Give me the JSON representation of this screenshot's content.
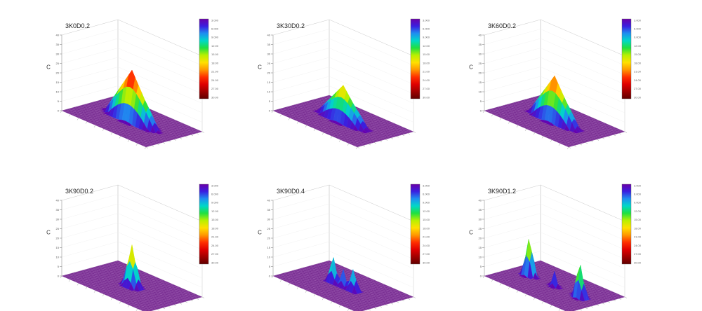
{
  "figure": {
    "colorbar": {
      "stops": [
        "#6a00a8",
        "#3a1fe0",
        "#1e8ff0",
        "#00d8c8",
        "#20e040",
        "#b8f000",
        "#ffe000",
        "#ff9800",
        "#ff3000",
        "#e00000",
        "#a00000",
        "#600000"
      ]
    },
    "surface_base_color": "#7a2f93",
    "gridline_color": "#c9c9c9"
  },
  "chart_data": [
    {
      "type": "surface3d",
      "title": "3K0D0.2",
      "zlabel": "C",
      "zlim": [
        0,
        40
      ],
      "z_ticks": [
        "0",
        "5",
        "10",
        "15",
        "20",
        "25",
        "30",
        "35",
        "40"
      ],
      "peaks": [
        {
          "x": 0.5,
          "y": 0.5,
          "height": 27,
          "spread_along_x": 0.32,
          "spread_along_y": 0.12
        }
      ],
      "colorbar_ticks": [
        "3.000",
        "6.000",
        "9.000",
        "12.00",
        "15.00",
        "18.00",
        "21.00",
        "24.00",
        "27.00",
        "30.00"
      ]
    },
    {
      "type": "surface3d",
      "title": "3K30D0.2",
      "zlabel": "C",
      "zlim": [
        0,
        40
      ],
      "z_ticks": [
        "0",
        "5",
        "10",
        "15",
        "20",
        "25",
        "30",
        "35",
        "40"
      ],
      "peaks": [
        {
          "x": 0.5,
          "y": 0.5,
          "height": 19,
          "spread_along_x": 0.3,
          "spread_along_y": 0.12
        }
      ],
      "colorbar_ticks": [
        "3.000",
        "6.000",
        "9.000",
        "12.00",
        "15.00",
        "18.00",
        "21.00",
        "24.00",
        "27.00",
        "30.00"
      ]
    },
    {
      "type": "surface3d",
      "title": "3K60D0.2",
      "zlabel": "C",
      "zlim": [
        0,
        40
      ],
      "z_ticks": [
        "0",
        "5",
        "10",
        "15",
        "20",
        "25",
        "30",
        "35",
        "40"
      ],
      "peaks": [
        {
          "x": 0.5,
          "y": 0.5,
          "height": 24,
          "spread_along_x": 0.3,
          "spread_along_y": 0.12
        }
      ],
      "colorbar_ticks": [
        "3.000",
        "6.000",
        "9.000",
        "12.00",
        "15.00",
        "18.00",
        "21.00",
        "24.00",
        "27.00",
        "30.00"
      ]
    },
    {
      "type": "surface3d",
      "title": "3K90D0.2",
      "zlabel": "C",
      "zlim": [
        0,
        40
      ],
      "z_ticks": [
        "0",
        "5",
        "10",
        "15",
        "20",
        "25",
        "30",
        "35",
        "40"
      ],
      "peaks": [
        {
          "x": 0.5,
          "y": 0.5,
          "height": 22,
          "spread_along_x": 0.1,
          "spread_along_y": 0.1
        }
      ],
      "colorbar_ticks": [
        "3.000",
        "6.000",
        "9.000",
        "12.00",
        "15.00",
        "18.00",
        "21.00",
        "24.00",
        "27.00",
        "30.00"
      ]
    },
    {
      "type": "surface3d",
      "title": "3K90D0.4",
      "zlabel": "C",
      "zlim": [
        0,
        40
      ],
      "z_ticks": [
        "0",
        "5",
        "10",
        "15",
        "20",
        "25",
        "30",
        "35",
        "40"
      ],
      "peaks": [
        {
          "x": 0.38,
          "y": 0.5,
          "height": 14,
          "spread_along_x": 0.07,
          "spread_along_y": 0.07
        },
        {
          "x": 0.5,
          "y": 0.5,
          "height": 9,
          "spread_along_x": 0.06,
          "spread_along_y": 0.06
        },
        {
          "x": 0.62,
          "y": 0.5,
          "height": 12,
          "spread_along_x": 0.07,
          "spread_along_y": 0.07
        }
      ],
      "colorbar_ticks": [
        "3.000",
        "6.000",
        "9.000",
        "12.00",
        "15.00",
        "18.00",
        "21.00",
        "24.00",
        "27.00",
        "30.00"
      ]
    },
    {
      "type": "surface3d",
      "title": "3K90D1.2",
      "zlabel": "C",
      "zlim": [
        0,
        40
      ],
      "z_ticks": [
        "0",
        "5",
        "10",
        "15",
        "20",
        "25",
        "30",
        "35",
        "40"
      ],
      "peaks": [
        {
          "x": 0.2,
          "y": 0.5,
          "height": 21,
          "spread_along_x": 0.08,
          "spread_along_y": 0.08
        },
        {
          "x": 0.5,
          "y": 0.5,
          "height": 8,
          "spread_along_x": 0.05,
          "spread_along_y": 0.05
        },
        {
          "x": 0.8,
          "y": 0.5,
          "height": 19,
          "spread_along_x": 0.08,
          "spread_along_y": 0.08
        }
      ],
      "colorbar_ticks": [
        "3.000",
        "6.000",
        "9.000",
        "12.00",
        "15.00",
        "18.00",
        "21.00",
        "24.00",
        "27.00",
        "30.00"
      ]
    }
  ]
}
